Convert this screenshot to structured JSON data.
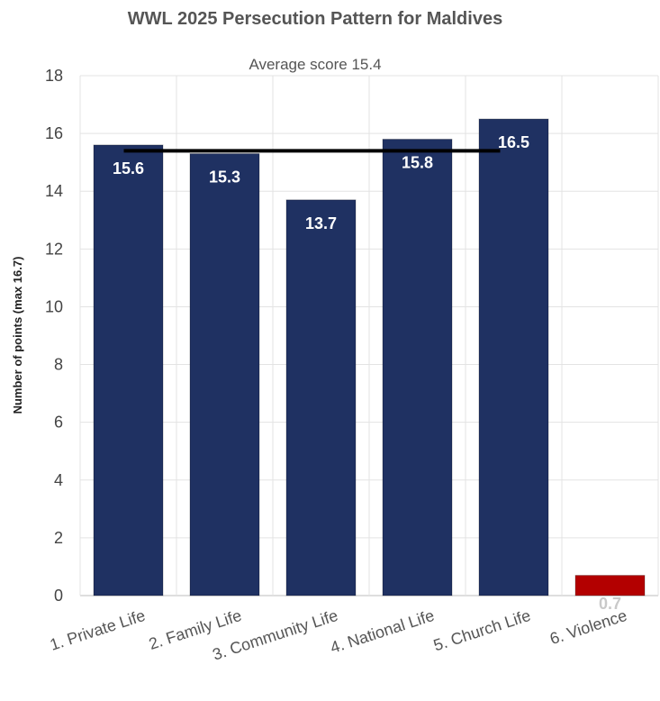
{
  "chart_data": {
    "type": "bar",
    "title": "WWL 2025 Persecution Pattern for Maldives",
    "subtitle": "Average score 15.4",
    "ylabel": "Number of points (max 16.7)",
    "xlabel": "",
    "ylim": [
      0,
      18
    ],
    "yticks": [
      0,
      2,
      4,
      6,
      8,
      10,
      12,
      14,
      16,
      18
    ],
    "categories": [
      "1. Private Life",
      "2. Family Life",
      "3. Community Life",
      "4. National Life",
      "5. Church Life",
      "6. Violence"
    ],
    "values": [
      15.6,
      15.3,
      13.7,
      15.8,
      16.5,
      0.7
    ],
    "data_labels": [
      "15.6",
      "15.3",
      "13.7",
      "15.8",
      "16.5",
      "0.7"
    ],
    "bar_colors": [
      "#1f3162",
      "#1f3162",
      "#1f3162",
      "#1f3162",
      "#1f3162",
      "#b30000"
    ],
    "average_line": {
      "value": 15.4,
      "color": "#000000"
    },
    "grid": true,
    "legend": "none"
  }
}
